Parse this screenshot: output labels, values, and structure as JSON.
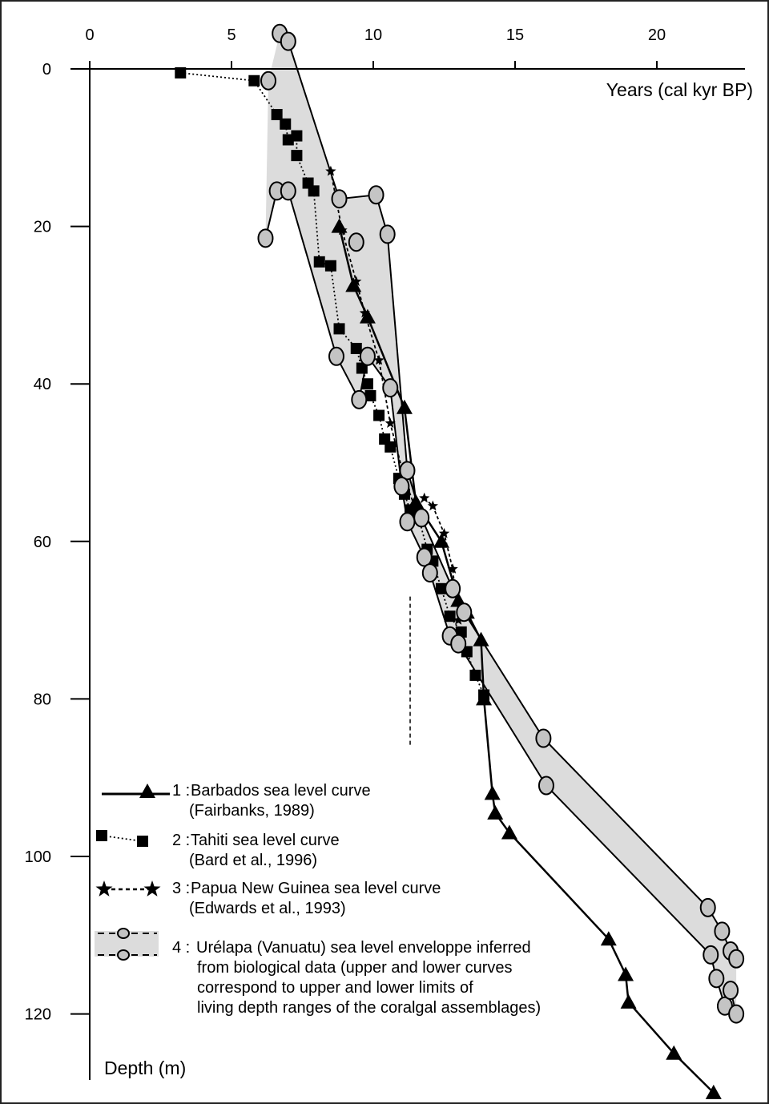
{
  "chart_data": {
    "type": "line",
    "xlabel": "Years (cal kyr BP)",
    "ylabel": "Depth (m)",
    "xlim": [
      0,
      23
    ],
    "ylim": [
      0,
      130
    ],
    "x_axis_position": "top",
    "y_inverted": true,
    "grid": false,
    "x_ticks": [
      {
        "value": 0,
        "label": "0"
      },
      {
        "value": 5,
        "label": "5"
      },
      {
        "value": 10,
        "label": "10"
      },
      {
        "value": 15,
        "label": "15"
      },
      {
        "value": 20,
        "label": "20"
      }
    ],
    "y_ticks": [
      {
        "value": 0,
        "label": "0"
      },
      {
        "value": 20,
        "label": "20"
      },
      {
        "value": 40,
        "label": "40"
      },
      {
        "value": 60,
        "label": "60"
      },
      {
        "value": 80,
        "label": "80"
      },
      {
        "value": 100,
        "label": "100"
      },
      {
        "value": 120,
        "label": "120"
      }
    ],
    "series": [
      {
        "name": "Barbados sea level curve",
        "number": "1",
        "source": "(Fairbanks, 1989)",
        "marker": "triangle",
        "line": "solid",
        "x": [
          8.8,
          9.3,
          9.8,
          11.1,
          11.5,
          12.4,
          13.0,
          13.3,
          13.8,
          13.9,
          14.2,
          14.3,
          14.8,
          18.3,
          18.9,
          19.0,
          20.6,
          22.0
        ],
        "y": [
          20,
          27.5,
          31.5,
          43,
          55,
          60,
          67.5,
          69,
          72.5,
          80,
          92,
          94.5,
          97,
          110.5,
          115,
          118.5,
          125,
          130
        ]
      },
      {
        "name": "Tahiti sea level curve",
        "number": "2",
        "source": "(Bard et al., 1996)",
        "marker": "square",
        "line": "dotted",
        "x": [
          3.2,
          5.8,
          6.6,
          6.9,
          7.0,
          7.3,
          7.3,
          7.7,
          7.9,
          8.1,
          8.5,
          8.8,
          9.4,
          9.6,
          9.8,
          9.9,
          10.2,
          10.4,
          10.6,
          10.9,
          11.1,
          11.3,
          11.6,
          11.9,
          12.1,
          12.4,
          12.7,
          13.1,
          13.3,
          13.6,
          13.9
        ],
        "y": [
          0.5,
          1.5,
          5.8,
          7,
          9,
          8.5,
          11,
          14.5,
          15.5,
          24.5,
          25,
          33,
          35.5,
          38,
          40,
          41.5,
          44,
          47,
          48,
          52,
          54,
          56,
          57,
          61,
          62.5,
          66,
          69.5,
          71.5,
          74,
          77,
          79.5
        ]
      },
      {
        "name": "Papua New Guinea sea level curve",
        "number": "3",
        "source": "(Edwards et al., 1993)",
        "marker": "star",
        "line": "dashed",
        "x": [
          8.5,
          8.9,
          9.4,
          9.7,
          10.2,
          10.6,
          11.1,
          11.5,
          11.8,
          12.1,
          12.5,
          12.8,
          13.0
        ],
        "y": [
          13,
          20.5,
          27,
          31,
          37,
          45,
          52,
          56,
          54.5,
          55.5,
          59,
          63.5,
          70
        ]
      }
    ],
    "envelope": {
      "name": "Urélapa (Vanuatu) sea level envelope",
      "number": "4",
      "legend_text": [
        "Urélapa (Vanuatu) sea level enveloppe inferred",
        "from biological data (upper and lower curves",
        "correspond to upper and lower limits of",
        "living depth ranges of the coralgal assemblages)"
      ],
      "marker": "circle",
      "fill": "#dcdcdc",
      "upper": {
        "x": [
          6.7,
          7.0,
          8.8,
          10.1,
          10.5,
          11.2,
          11.7,
          12.8,
          13.2,
          16.0,
          21.8,
          22.3,
          22.6,
          22.8
        ],
        "y": [
          -4.5,
          -3.5,
          16.5,
          16,
          21,
          51,
          57,
          66,
          69,
          85,
          106.5,
          109.5,
          112,
          113
        ]
      },
      "lower": {
        "x": [
          6.2,
          6.6,
          7.0,
          8.7,
          9.5,
          9.8,
          10.6,
          11.0,
          11.2,
          11.8,
          12.0,
          12.7,
          13.0,
          16.1,
          21.9,
          22.1,
          22.4,
          22.6,
          22.8
        ],
        "y": [
          21.5,
          15.5,
          15.5,
          36.5,
          42,
          36.5,
          40.5,
          53,
          57.5,
          62,
          64,
          72,
          73,
          91,
          112.5,
          115.5,
          119,
          117,
          120
        ]
      },
      "extra_points": {
        "x": [
          6.3,
          9.4
        ],
        "y": [
          1.5,
          22
        ]
      }
    },
    "reference_line": {
      "x": 11.3,
      "y_start": 67,
      "y_end": 86
    }
  }
}
